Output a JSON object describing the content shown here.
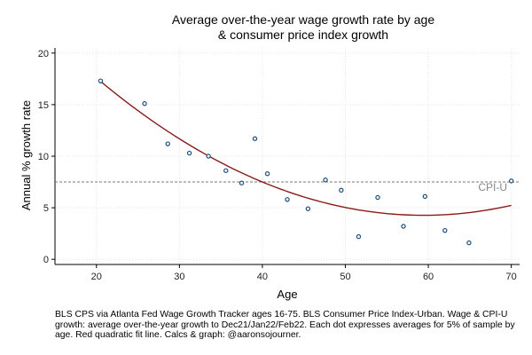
{
  "chart_data": {
    "type": "scatter",
    "title_lines": [
      "Average over-the-year wage growth rate by age",
      "& consumer price index growth"
    ],
    "xlabel": "Age",
    "ylabel": "Annual % growth rate",
    "xlim": [
      15,
      71
    ],
    "ylim": [
      -0.5,
      20.5
    ],
    "x_ticks": [
      20,
      30,
      40,
      50,
      60,
      70
    ],
    "y_ticks": [
      0,
      5,
      10,
      15,
      20
    ],
    "grid": true,
    "series": [
      {
        "kind": "points",
        "color": "#1f4e79",
        "points": [
          {
            "x": 20.5,
            "y": 17.3
          },
          {
            "x": 25.8,
            "y": 15.1
          },
          {
            "x": 28.6,
            "y": 11.2
          },
          {
            "x": 31.2,
            "y": 10.3
          },
          {
            "x": 33.5,
            "y": 10.0
          },
          {
            "x": 35.6,
            "y": 8.6
          },
          {
            "x": 37.5,
            "y": 7.4
          },
          {
            "x": 39.1,
            "y": 11.7
          },
          {
            "x": 40.6,
            "y": 8.3
          },
          {
            "x": 43.0,
            "y": 5.8
          },
          {
            "x": 45.5,
            "y": 4.9
          },
          {
            "x": 47.6,
            "y": 7.7
          },
          {
            "x": 49.5,
            "y": 6.7
          },
          {
            "x": 51.6,
            "y": 2.2
          },
          {
            "x": 53.9,
            "y": 6.0
          },
          {
            "x": 57.0,
            "y": 3.2
          },
          {
            "x": 59.6,
            "y": 6.1
          },
          {
            "x": 62.0,
            "y": 2.8
          },
          {
            "x": 64.9,
            "y": 1.6
          },
          {
            "x": 70.0,
            "y": 7.6
          }
        ]
      },
      {
        "kind": "fit",
        "color": "#8b1a1a",
        "x_range": [
          20.5,
          70
        ],
        "quadratic": {
          "x_min": 59.4,
          "y_min": 4.27,
          "a": 0.00858
        }
      }
    ],
    "reference_line": {
      "y": 7.5,
      "label": "CPI-U",
      "color": "#777777"
    }
  },
  "caption": "BLS CPS via Atlanta Fed Wage Growth Tracker ages 16-75. BLS Consumer Price Index-Urban. Wage & CPI-U growth: average over-the-year growth to Dec21/Jan22/Feb22. Each dot expresses averages for 5% of sample by age. Red quadratic fit line. Calcs & graph: @aaronsojourner."
}
